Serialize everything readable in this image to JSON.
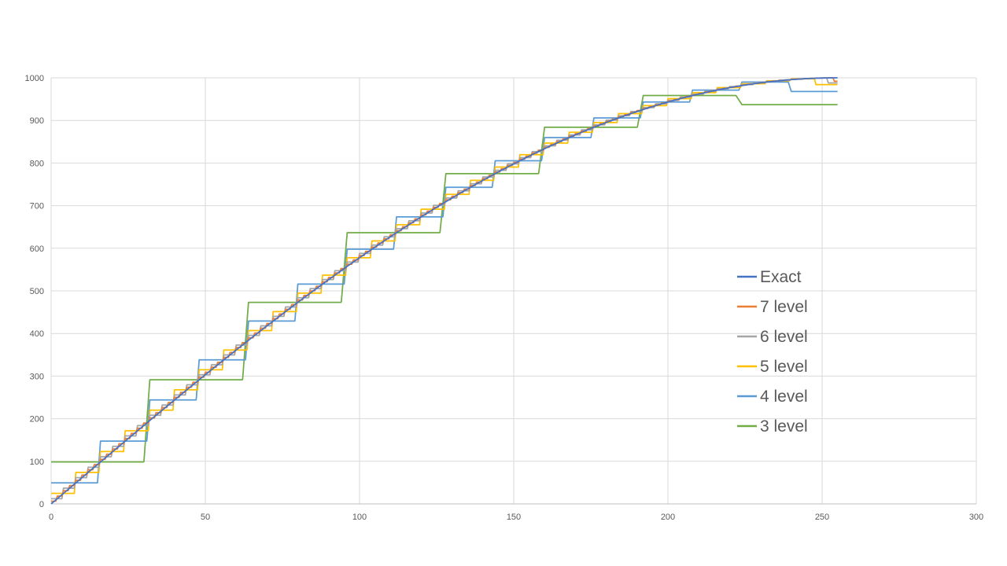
{
  "chart_data": {
    "type": "line",
    "title": "",
    "xlabel": "",
    "ylabel": "",
    "xlim": [
      0,
      300
    ],
    "ylim": [
      0,
      1000
    ],
    "x_ticks": [
      0,
      50,
      100,
      150,
      200,
      250,
      300
    ],
    "y_ticks": [
      0,
      100,
      200,
      300,
      400,
      500,
      600,
      700,
      800,
      900,
      1000
    ],
    "grid": true,
    "legend": "right",
    "x_max": 255,
    "series": [
      {
        "name": "Exact",
        "color": "#4472C4",
        "kind": "exact"
      },
      {
        "name": "7 level",
        "color": "#ED7D31",
        "kind": "step",
        "levels": 128,
        "top": 992
      },
      {
        "name": "6 level",
        "color": "#A5A5A5",
        "kind": "step",
        "levels": 64,
        "top": 988
      },
      {
        "name": "5 level",
        "color": "#FFC000",
        "kind": "step",
        "levels": 32,
        "top": 984
      },
      {
        "name": "4 level",
        "color": "#5B9BD5",
        "kind": "step",
        "levels": 16,
        "top": 968
      },
      {
        "name": "3 level",
        "color": "#70AD47",
        "kind": "step",
        "levels": 8,
        "top": 937
      }
    ]
  }
}
